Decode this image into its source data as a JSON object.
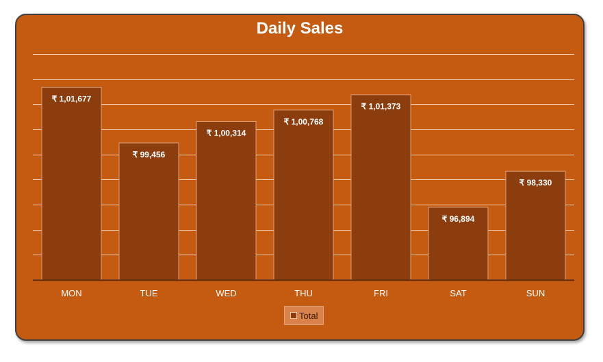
{
  "chart_data": {
    "type": "bar",
    "title": "Daily Sales",
    "categories": [
      "MON",
      "TUE",
      "WED",
      "THU",
      "FRI",
      "SAT",
      "SUN"
    ],
    "series": [
      {
        "name": "Total",
        "values": [
          101677,
          99456,
          100314,
          100768,
          101373,
          96894,
          98330
        ],
        "labels": [
          "₹ 1,01,677",
          "₹ 99,456",
          "₹ 1,00,314",
          "₹ 1,00,768",
          "₹ 1,01,373",
          "₹ 96,894",
          "₹ 98,330"
        ]
      }
    ],
    "ylim": [
      94000,
      103000
    ],
    "ytick_step": 1000,
    "grid": true,
    "legend_position": "bottom",
    "colors": {
      "background": "#c55a11",
      "bar_fill": "#8b3d0e",
      "bar_border": "#e0a27a",
      "gridline": "#f2d0b8",
      "axis": "#5a2a0a",
      "text": "#ffffff"
    }
  }
}
